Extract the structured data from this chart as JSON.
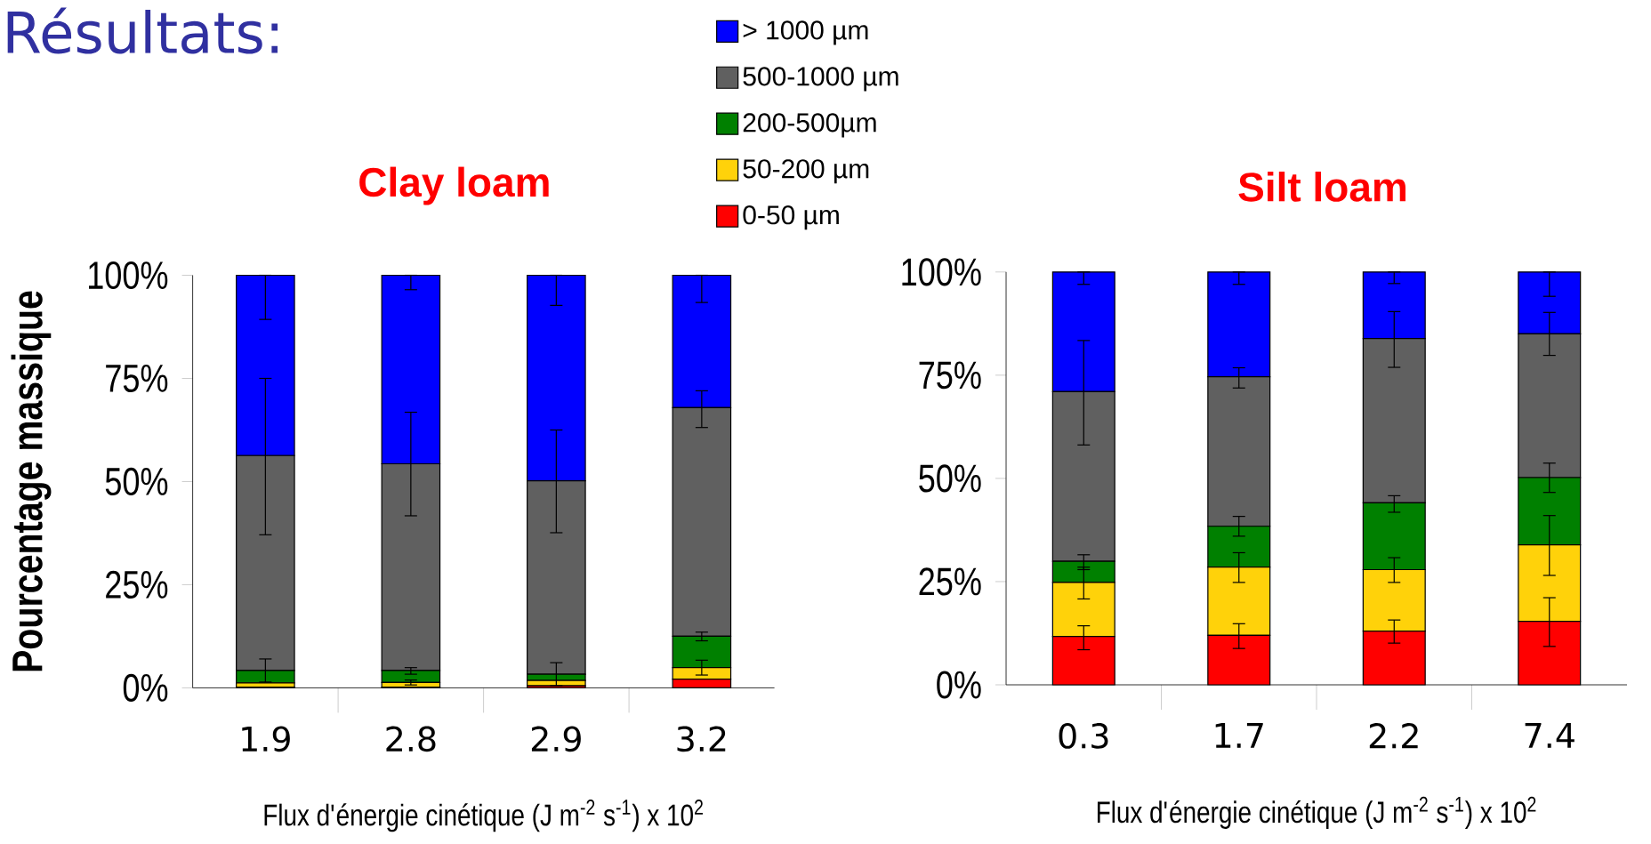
{
  "chart_data": [
    {
      "type": "bar",
      "stacked": true,
      "title": "Clay loam",
      "annotations": [
        "Résultats:"
      ],
      "ylabel": "Pourcentage massique",
      "xlabel": "Flux d'énergie cinétique (J m$^{-2}$ s$^{-1}$) x 10$^{2}$",
      "categories": [
        "1.9",
        "2.8",
        "2.9",
        "3.2"
      ],
      "ylim": [
        0,
        100
      ],
      "yticks": [
        {
          "value": 0,
          "label": "0%"
        },
        {
          "value": 25,
          "label": "25%"
        },
        {
          "value": 50,
          "label": "50%"
        },
        {
          "value": 75,
          "label": "75%"
        },
        {
          "value": 100,
          "label": "100%"
        }
      ],
      "legend": "top right",
      "series": [
        {
          "name": "0-50 µm",
          "color": "#ff0000",
          "values": [
            0.2,
            0.2,
            0.5,
            2.1
          ],
          "errors": [
            null,
            null,
            null,
            null
          ]
        },
        {
          "name": "50-200 µm",
          "color": "#ffd20a",
          "values": [
            1.0,
            1.1,
            1.3,
            2.8
          ],
          "errors": [
            null,
            [
              0.7,
              1.9
            ],
            null,
            [
              3.1,
              6.7
            ]
          ]
        },
        {
          "name": "200-500µm",
          "color": "#008000",
          "values": [
            3.0,
            2.9,
            1.5,
            7.6
          ],
          "errors": [
            [
              1.4,
              7.0
            ],
            [
              3.3,
              4.9
            ],
            [
              0.5,
              6.1
            ],
            [
              11.4,
              13.5
            ]
          ]
        },
        {
          "name": "500-1000 µm",
          "color": "#606060",
          "values": [
            52.1,
            50.1,
            46.9,
            55.4
          ],
          "errors": [
            [
              37.1,
              75.0
            ],
            [
              41.7,
              66.8
            ],
            [
              37.6,
              62.5
            ],
            [
              63.1,
              72.0
            ]
          ]
        },
        {
          "name": "> 1000 µm",
          "color": "#0000ff",
          "values": [
            43.7,
            45.7,
            49.8,
            32.1
          ],
          "errors": [
            [
              89.3,
              100
            ],
            [
              96.5,
              100
            ],
            [
              92.7,
              100
            ],
            [
              93.4,
              100
            ]
          ]
        }
      ]
    },
    {
      "type": "bar",
      "stacked": true,
      "title": "Silt loam",
      "xlabel": "Flux d'énergie cinétique (J m$^{-2}$ s$^{-1}$) x 10$^{2}$",
      "categories": [
        "0.3",
        "1.7",
        "2.2",
        "7.4"
      ],
      "ylim": [
        0,
        100
      ],
      "yticks": [
        {
          "value": 0,
          "label": "0%"
        },
        {
          "value": 25,
          "label": "25%"
        },
        {
          "value": 50,
          "label": "50%"
        },
        {
          "value": 75,
          "label": "75%"
        },
        {
          "value": 100,
          "label": "100%"
        }
      ],
      "series": [
        {
          "color": "#ff0000",
          "values": [
            11.7,
            12.0,
            13.0,
            15.4
          ],
          "errors": [
            [
              8.5,
              14.3
            ],
            [
              8.8,
              14.8
            ],
            [
              10.1,
              15.7
            ],
            [
              9.3,
              21.1
            ]
          ]
        },
        {
          "color": "#ffd20a",
          "values": [
            13.1,
            16.5,
            14.9,
            18.5
          ],
          "errors": [
            [
              20.8,
              28.5
            ],
            [
              24.8,
              32.0
            ],
            [
              24.8,
              30.8
            ],
            [
              26.5,
              41.0
            ]
          ]
        },
        {
          "color": "#008000",
          "values": [
            5.1,
            9.9,
            16.2,
            16.3
          ],
          "errors": [
            [
              27.9,
              31.5
            ],
            [
              36.0,
              40.8
            ],
            [
              41.8,
              45.8
            ],
            [
              46.6,
              53.7
            ]
          ]
        },
        {
          "color": "#606060",
          "values": [
            41.1,
            36.2,
            39.8,
            34.8
          ],
          "errors": [
            [
              58.1,
              83.4
            ],
            [
              71.9,
              76.8
            ],
            [
              76.9,
              90.4
            ],
            [
              79.8,
              90.2
            ]
          ]
        },
        {
          "color": "#0000ff",
          "values": [
            29.0,
            25.4,
            16.1,
            15.0
          ],
          "errors": [
            [
              97.0,
              100
            ],
            [
              97.0,
              100
            ],
            [
              97.2,
              100
            ],
            [
              94.1,
              100
            ]
          ]
        }
      ]
    }
  ]
}
